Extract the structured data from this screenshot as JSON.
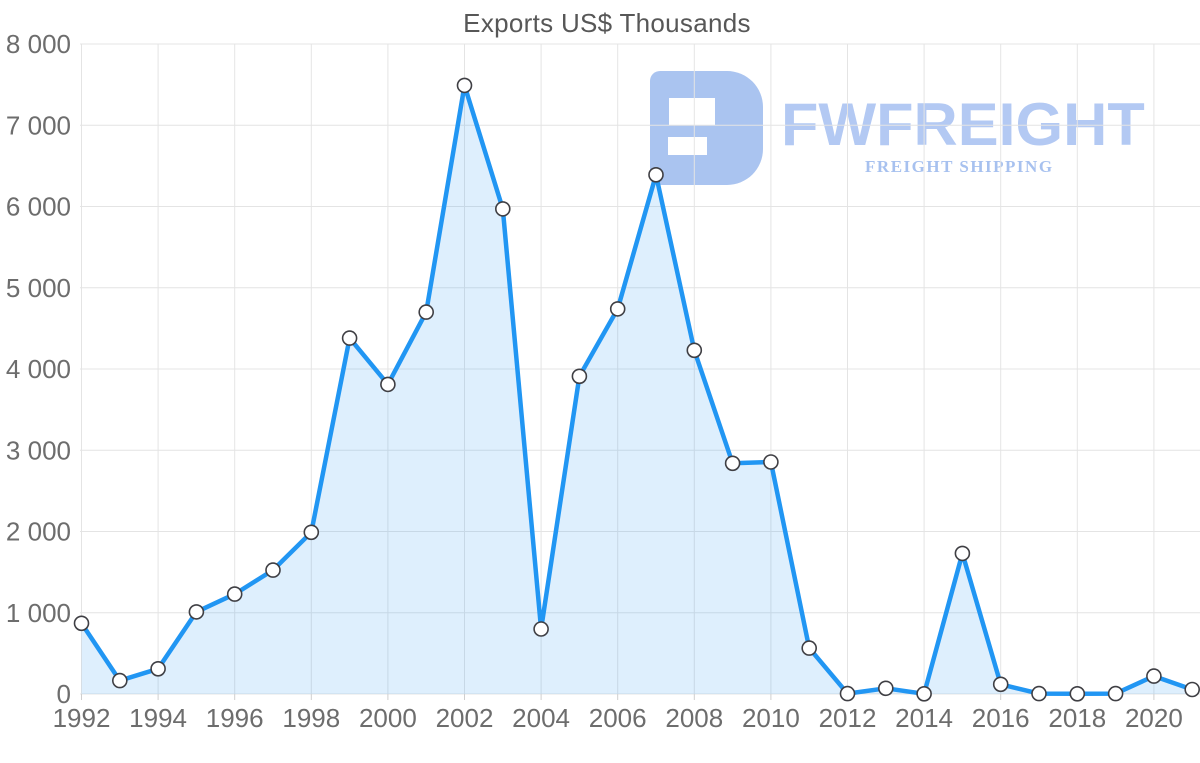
{
  "chart_data": {
    "type": "area",
    "title": "Exports US$ Thousands",
    "xlabel": "",
    "ylabel": "",
    "x_years": [
      1992,
      1993,
      1994,
      1995,
      1996,
      1997,
      1998,
      1999,
      2000,
      2001,
      2002,
      2003,
      2004,
      2005,
      2006,
      2007,
      2008,
      2009,
      2010,
      2011,
      2012,
      2013,
      2014,
      2015,
      2016,
      2017,
      2018,
      2019,
      2020,
      2021
    ],
    "values": [
      870,
      165,
      310,
      1010,
      1230,
      1525,
      1990,
      4380,
      3810,
      4700,
      7490,
      5970,
      800,
      3910,
      4740,
      6390,
      4230,
      2840,
      2855,
      565,
      5,
      70,
      3,
      1730,
      120,
      5,
      3,
      5,
      220,
      55
    ],
    "ylim": [
      0,
      8000
    ],
    "ytick_interval": 1000,
    "ytick_labels": [
      "0",
      "1 000",
      "2 000",
      "3 000",
      "4 000",
      "5 000",
      "6 000",
      "7 000",
      "8 000"
    ],
    "xtick_interval": 2,
    "xtick_labels": [
      "1992",
      "1994",
      "1996",
      "1998",
      "2000",
      "2002",
      "2004",
      "2006",
      "2008",
      "2010",
      "2012",
      "2014",
      "2016",
      "2018",
      "2020"
    ],
    "grid": true,
    "legend": "none",
    "colors": {
      "line": "#2196f3",
      "fill": "#2196f3",
      "fill_opacity": 0.15,
      "marker_fill": "#ffffff",
      "marker_stroke": "#3f3f44",
      "grid": "#e4e4e4",
      "tick": "#cfcfcf",
      "axis_labels": "#6d6d6d",
      "title": "#575757"
    }
  },
  "watermark": {
    "brand": "FWFREIGHT",
    "tagline": "FREIGHT SHIPPING",
    "mark_color": "#aac4f0",
    "brand_color": "#b3c9f3",
    "tagline_color": "#a7c1ef"
  }
}
